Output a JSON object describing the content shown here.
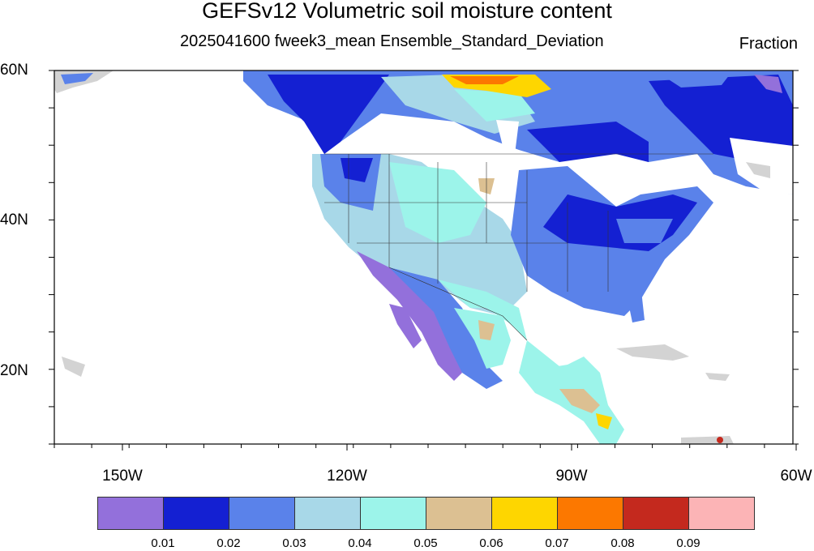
{
  "title": "GEFSv12 Volumetric soil moisture content",
  "subtitle": "2025041600 fweek3_mean Ensemble_Standard_Deviation",
  "units": "Fraction",
  "lat_labels": [
    "60N",
    "40N",
    "20N"
  ],
  "lon_labels": [
    "150W",
    "120W",
    "90W",
    "60W"
  ],
  "colorbar": {
    "colors": [
      "#9370db",
      "#1420d2",
      "#5a82ea",
      "#a8d8e8",
      "#9cf4ea",
      "#dcc092",
      "#fed600",
      "#fc7800",
      "#c4291e",
      "#fcb4b6"
    ],
    "labels": [
      "0.01",
      "0.02",
      "0.03",
      "0.04",
      "0.05",
      "0.06",
      "0.07",
      "0.08",
      "0.09"
    ]
  },
  "land_mask_color": "#d3d3d3"
}
